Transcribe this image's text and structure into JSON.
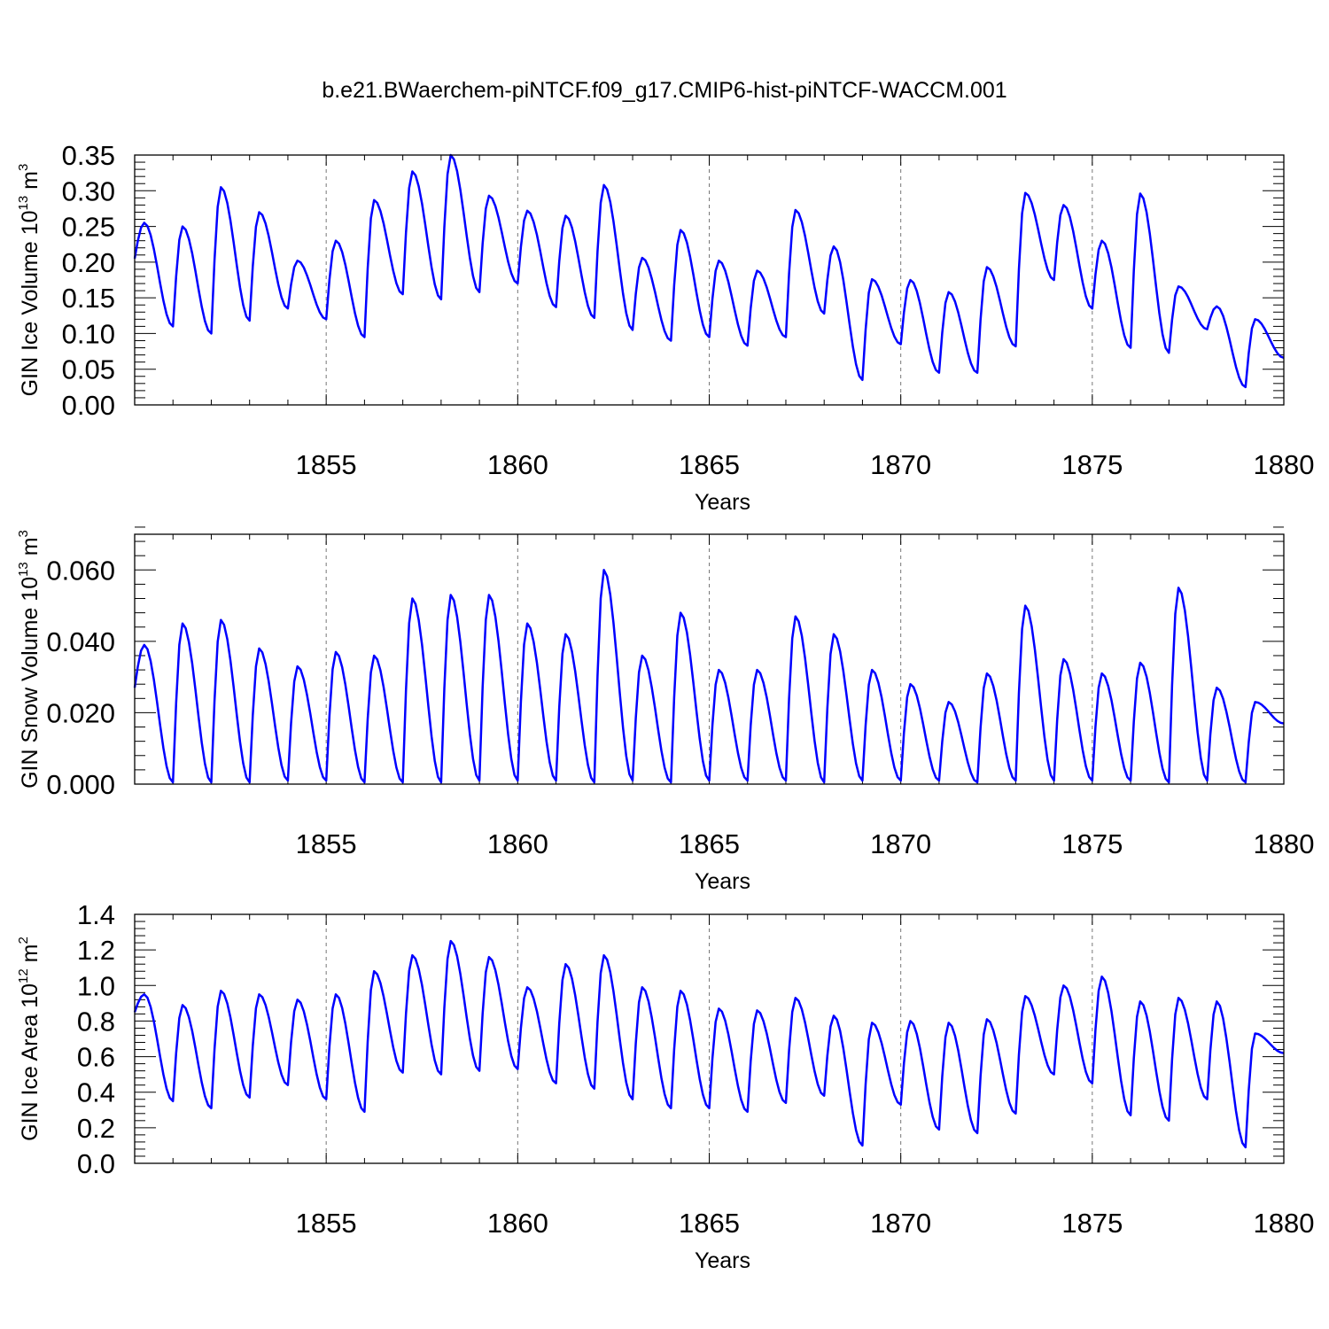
{
  "figure": {
    "title": "b.e21.BWaerchem-piNTCF.f09_g17.CMIP6-hist-piNTCF-WACCM.001"
  },
  "chart_data": [
    {
      "type": "line",
      "id": "ice-volume",
      "ylabel_main": "GIN Ice Volume 10",
      "ylabel_exp": "13",
      "ylabel_unit": "m",
      "ylabel_unit_exp": "3",
      "xlabel": "Years",
      "xlim": [
        1850,
        1880
      ],
      "ylim": [
        0,
        0.35
      ],
      "xticks": [
        1855,
        1860,
        1865,
        1870,
        1875,
        1880
      ],
      "yticks": [
        0,
        0.05,
        0.1,
        0.15,
        0.2,
        0.25,
        0.3,
        0.35
      ],
      "ytick_labels": [
        "0.00",
        "0.05",
        "0.10",
        "0.15",
        "0.20",
        "0.25",
        "0.30",
        "0.35"
      ],
      "grid_x": true,
      "series": [
        {
          "name": "GIN Ice Volume",
          "color": "#0000ff",
          "maxima": [
            0.255,
            0.25,
            0.305,
            0.27,
            0.202,
            0.23,
            0.287,
            0.327,
            0.35,
            0.293,
            0.272,
            0.265,
            0.308,
            0.206,
            0.245,
            0.202,
            0.188,
            0.273,
            0.222,
            0.176,
            0.175,
            0.158,
            0.193,
            0.297,
            0.28,
            0.23,
            0.296,
            0.166,
            0.138,
            0.12
          ],
          "minima": [
            0.205,
            0.11,
            0.1,
            0.118,
            0.135,
            0.12,
            0.095,
            0.155,
            0.148,
            0.158,
            0.17,
            0.137,
            0.122,
            0.105,
            0.09,
            0.095,
            0.083,
            0.095,
            0.128,
            0.035,
            0.085,
            0.045,
            0.045,
            0.082,
            0.175,
            0.135,
            0.08,
            0.073,
            0.106,
            0.025,
            0.066
          ]
        }
      ]
    },
    {
      "type": "line",
      "id": "snow-volume",
      "ylabel_main": "GIN Snow Volume 10",
      "ylabel_exp": "13",
      "ylabel_unit": "m",
      "ylabel_unit_exp": "3",
      "xlabel": "Years",
      "xlim": [
        1850,
        1880
      ],
      "ylim": [
        0,
        0.07
      ],
      "xticks": [
        1855,
        1860,
        1865,
        1870,
        1875,
        1880
      ],
      "yticks": [
        0,
        0.02,
        0.04,
        0.06
      ],
      "ytick_labels": [
        "0.000",
        "0.020",
        "0.040",
        "0.060"
      ],
      "grid_x": true,
      "series": [
        {
          "name": "GIN Snow Volume",
          "color": "#0000ff",
          "maxima": [
            0.039,
            0.045,
            0.046,
            0.038,
            0.033,
            0.037,
            0.036,
            0.052,
            0.053,
            0.053,
            0.045,
            0.042,
            0.06,
            0.036,
            0.048,
            0.032,
            0.032,
            0.047,
            0.042,
            0.032,
            0.028,
            0.023,
            0.031,
            0.05,
            0.035,
            0.031,
            0.034,
            0.055,
            0.027,
            0.023
          ],
          "minima": [
            0.027,
            0.0005,
            0.0005,
            0.0005,
            0.001,
            0.001,
            0.0005,
            0.0005,
            0.0005,
            0.001,
            0.001,
            0.001,
            0.0005,
            0.001,
            0.0005,
            0.001,
            0.001,
            0.001,
            0.0005,
            0.001,
            0.001,
            0.001,
            0.0005,
            0.001,
            0.001,
            0.001,
            0.001,
            0.0005,
            0.001,
            0.0005,
            0.017
          ]
        }
      ]
    },
    {
      "type": "line",
      "id": "ice-area",
      "ylabel_main": "GIN Ice Area 10",
      "ylabel_exp": "12",
      "ylabel_unit": "m",
      "ylabel_unit_exp": "2",
      "xlabel": "Years",
      "xlim": [
        1850,
        1880
      ],
      "ylim": [
        0,
        1.4
      ],
      "xticks": [
        1855,
        1860,
        1865,
        1870,
        1875,
        1880
      ],
      "yticks": [
        0,
        0.2,
        0.4,
        0.6,
        0.8,
        1.0,
        1.2,
        1.4
      ],
      "ytick_labels": [
        "0.0",
        "0.2",
        "0.4",
        "0.6",
        "0.8",
        "1.0",
        "1.2",
        "1.4"
      ],
      "grid_x": true,
      "series": [
        {
          "name": "GIN Ice Area",
          "color": "#0000ff",
          "maxima": [
            0.95,
            0.89,
            0.97,
            0.95,
            0.92,
            0.95,
            1.08,
            1.17,
            1.25,
            1.16,
            0.99,
            1.12,
            1.17,
            0.99,
            0.97,
            0.87,
            0.86,
            0.93,
            0.83,
            0.79,
            0.8,
            0.79,
            0.81,
            0.94,
            1.0,
            1.05,
            0.91,
            0.93,
            0.91,
            0.73
          ],
          "minima": [
            0.85,
            0.35,
            0.31,
            0.37,
            0.44,
            0.36,
            0.29,
            0.51,
            0.5,
            0.52,
            0.53,
            0.45,
            0.42,
            0.36,
            0.31,
            0.31,
            0.29,
            0.34,
            0.38,
            0.1,
            0.33,
            0.19,
            0.17,
            0.28,
            0.5,
            0.45,
            0.27,
            0.24,
            0.36,
            0.09,
            0.62
          ]
        }
      ]
    }
  ]
}
